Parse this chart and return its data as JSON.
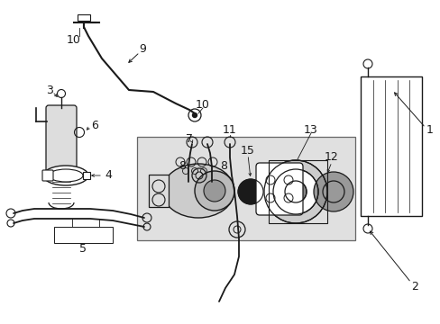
{
  "bg_color": "#ffffff",
  "line_color": "#1a1a1a",
  "shade_color": "#e0e0e0",
  "figsize": [
    4.89,
    3.6
  ],
  "dpi": 100
}
